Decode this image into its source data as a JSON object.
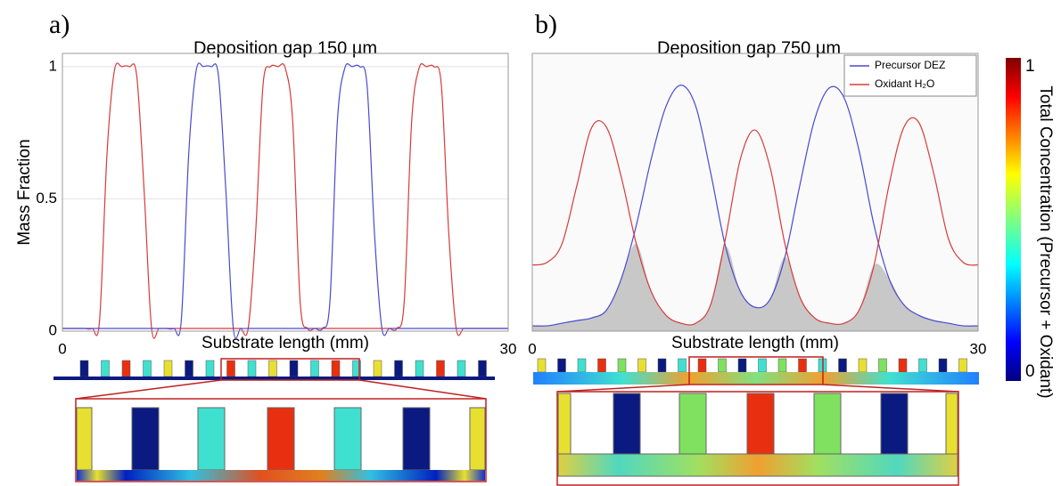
{
  "chart_data": [
    {
      "type": "line",
      "panel": "a)",
      "title": "Deposition gap 150 µm",
      "xlabel": "Substrate length (mm)",
      "ylabel": "Mass Fraction",
      "x": [
        0,
        0.5,
        1,
        1.5,
        2,
        2.5,
        3,
        3.5,
        4,
        4.5,
        5,
        5.5,
        6,
        6.5,
        7,
        7.5,
        8,
        8.5,
        9,
        9.5,
        10,
        10.5,
        11,
        11.5,
        12,
        12.5,
        13,
        13.5,
        14,
        14.5,
        15,
        15.5,
        16,
        16.5,
        17,
        17.5,
        18,
        18.5,
        19,
        19.5,
        20,
        20.5,
        21,
        21.5,
        22,
        22.5,
        23,
        23.5,
        24,
        24.5,
        25,
        25.5,
        26,
        26.5,
        27,
        27.5,
        28,
        28.5,
        29,
        29.5,
        30
      ],
      "series": [
        {
          "name": "Oxidant H₂O",
          "color": "#d83a3a",
          "values": [
            0.01,
            0.01,
            0.01,
            0.01,
            0.01,
            0.04,
            0.67,
            0.985,
            1,
            1,
            0.966,
            0.53,
            0.011,
            0.01,
            0.01,
            0.01,
            0.01,
            0.01,
            0.01,
            0.01,
            0.01,
            0.01,
            0.01,
            0.01,
            0.01,
            0.01,
            0.37,
            0.93,
            1,
            1,
            0.994,
            0.79,
            0.11,
            0.01,
            0.01,
            0.01,
            0.01,
            0.01,
            0.01,
            0.01,
            0.01,
            0.01,
            0.01,
            0.01,
            0.01,
            0.01,
            0.11,
            0.79,
            0.994,
            1,
            1,
            0.93,
            0.37,
            0.01,
            0.01,
            0.01,
            0.01,
            0.01,
            0.01,
            0.01,
            0.01
          ]
        },
        {
          "name": "Precursor DEZ",
          "color": "#4a4ad0",
          "values": [
            0.01,
            0.01,
            0.01,
            0.01,
            0.01,
            0.01,
            0.01,
            0.01,
            0.01,
            0.01,
            0.01,
            0.01,
            0.01,
            0.01,
            0.01,
            0.01,
            0.04,
            0.67,
            0.985,
            1,
            1,
            0.966,
            0.53,
            0.011,
            0.01,
            0.01,
            0.01,
            0.01,
            0.01,
            0.01,
            0.01,
            0.01,
            0.01,
            0.01,
            0.01,
            0.01,
            0.11,
            0.79,
            0.994,
            1,
            1,
            0.93,
            0.37,
            0.01,
            0.01,
            0.01,
            0.01,
            0.01,
            0.01,
            0.01,
            0.01,
            0.01,
            0.01,
            0.01,
            0.01,
            0.01,
            0.01,
            0.01,
            0.01,
            0.01,
            0.01
          ]
        }
      ],
      "xlim": [
        0,
        30
      ],
      "xticks": [
        0,
        30
      ],
      "ylim": [
        0,
        1.05
      ],
      "yticks": [
        0,
        0.5,
        1
      ],
      "grid": true
    },
    {
      "type": "line",
      "panel": "b)",
      "title": "Deposition gap 750 µm",
      "xlabel": "Substrate length (mm)",
      "x": [
        0,
        1,
        2,
        3,
        4,
        5,
        6,
        7,
        8,
        9,
        10,
        11,
        12,
        13,
        14,
        15,
        16,
        17,
        18,
        19,
        20,
        21,
        22,
        23,
        24,
        25,
        26,
        27,
        28,
        29,
        30
      ],
      "series": [
        {
          "name": "Precursor DEZ",
          "color": "#4a4ad0",
          "values": [
            0.02,
            0.02,
            0.03,
            0.04,
            0.05,
            0.08,
            0.2,
            0.4,
            0.65,
            0.85,
            0.93,
            0.85,
            0.6,
            0.32,
            0.15,
            0.09,
            0.12,
            0.28,
            0.55,
            0.8,
            0.92,
            0.88,
            0.68,
            0.4,
            0.2,
            0.1,
            0.06,
            0.04,
            0.03,
            0.02,
            0.02
          ]
        },
        {
          "name": "Oxidant H₂O",
          "color": "#d83a3a",
          "values": [
            0.25,
            0.26,
            0.33,
            0.55,
            0.77,
            0.77,
            0.58,
            0.33,
            0.15,
            0.06,
            0.03,
            0.03,
            0.1,
            0.35,
            0.65,
            0.76,
            0.62,
            0.33,
            0.13,
            0.05,
            0.03,
            0.03,
            0.08,
            0.25,
            0.55,
            0.77,
            0.79,
            0.6,
            0.35,
            0.26,
            0.25
          ]
        }
      ],
      "xlim": [
        0,
        30
      ],
      "xticks": [
        0,
        30
      ],
      "ylim": [
        0,
        1.05
      ],
      "grid": true,
      "legend": "upper right",
      "overlap_fill": "#c8c8c8"
    }
  ],
  "colorbar": {
    "label": "Total Concentration (Precursor + Oxidant)",
    "lim": [
      0,
      1
    ],
    "ticks": [
      0,
      1
    ]
  }
}
